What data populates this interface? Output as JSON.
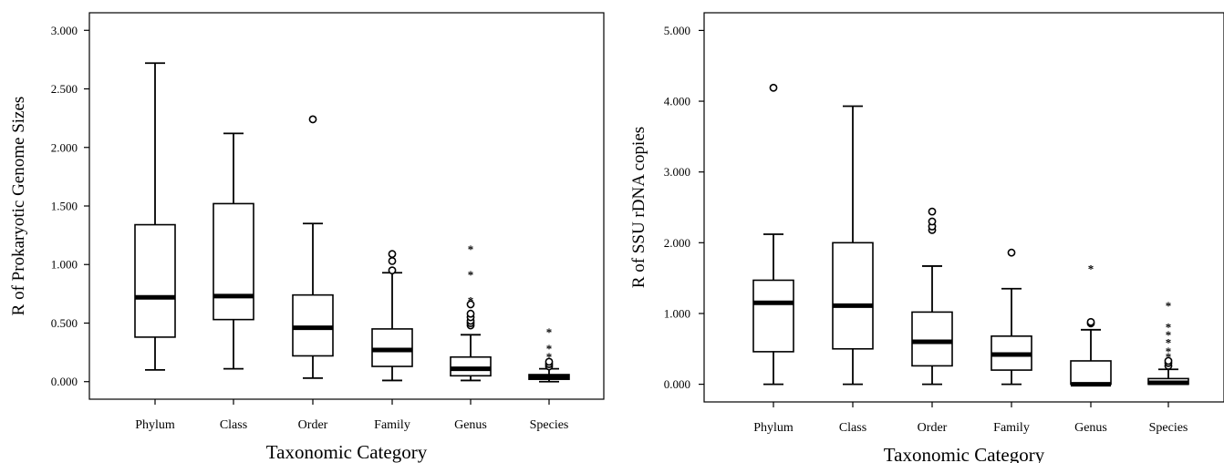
{
  "chart_data": [
    {
      "type": "boxplot",
      "xlabel": "Taxonomic Category",
      "ylabel": "R of Prokaryotic Genome Sizes",
      "ylim": [
        -0.15,
        3.15
      ],
      "yticks": [
        "0.000",
        "0.500",
        "1.000",
        "1.500",
        "2.000",
        "2.500",
        "3.000"
      ],
      "ytick_values": [
        0,
        0.5,
        1,
        1.5,
        2,
        2.5,
        3
      ],
      "categories": [
        "Phylum",
        "Class",
        "Order",
        "Family",
        "Genus",
        "Species"
      ],
      "boxes": [
        {
          "min": 0.1,
          "q1": 0.38,
          "median": 0.72,
          "q3": 1.34,
          "max": 2.72,
          "outliers": [],
          "extremes": []
        },
        {
          "min": 0.11,
          "q1": 0.53,
          "median": 0.73,
          "q3": 1.52,
          "max": 2.12,
          "outliers": [],
          "extremes": []
        },
        {
          "min": 0.03,
          "q1": 0.22,
          "median": 0.46,
          "q3": 0.74,
          "max": 1.35,
          "outliers": [
            2.24
          ],
          "extremes": []
        },
        {
          "min": 0.01,
          "q1": 0.13,
          "median": 0.27,
          "q3": 0.45,
          "max": 0.93,
          "outliers": [
            0.95,
            1.03,
            1.09
          ],
          "extremes": []
        },
        {
          "min": 0.01,
          "q1": 0.05,
          "median": 0.11,
          "q3": 0.21,
          "max": 0.4,
          "outliers": [
            0.48,
            0.5,
            0.52,
            0.55,
            0.58,
            0.66
          ],
          "extremes": [
            0.71,
            0.93,
            1.15
          ]
        },
        {
          "min": 0.0,
          "q1": 0.02,
          "median": 0.04,
          "q3": 0.06,
          "max": 0.11,
          "outliers": [
            0.13,
            0.15,
            0.17
          ],
          "extremes": [
            0.23,
            0.3,
            0.44
          ]
        }
      ]
    },
    {
      "type": "boxplot",
      "xlabel": "Taxonomic Category",
      "ylabel": "R of SSU rDNA copies",
      "ylim": [
        -0.25,
        5.25
      ],
      "yticks": [
        "0.000",
        "1.000",
        "2.000",
        "3.000",
        "4.000",
        "5.000"
      ],
      "ytick_values": [
        0,
        1,
        2,
        3,
        4,
        5
      ],
      "categories": [
        "Phylum",
        "Class",
        "Order",
        "Family",
        "Genus",
        "Species"
      ],
      "boxes": [
        {
          "min": 0.0,
          "q1": 0.46,
          "median": 1.15,
          "q3": 1.47,
          "max": 2.12,
          "outliers": [
            4.19
          ],
          "extremes": []
        },
        {
          "min": 0.0,
          "q1": 0.5,
          "median": 1.11,
          "q3": 2.0,
          "max": 3.93,
          "outliers": [],
          "extremes": []
        },
        {
          "min": 0.0,
          "q1": 0.26,
          "median": 0.6,
          "q3": 1.02,
          "max": 1.67,
          "outliers": [
            2.18,
            2.23,
            2.3,
            2.44
          ],
          "extremes": []
        },
        {
          "min": 0.0,
          "q1": 0.2,
          "median": 0.42,
          "q3": 0.68,
          "max": 1.35,
          "outliers": [
            1.86
          ],
          "extremes": []
        },
        {
          "min": 0.0,
          "q1": 0.0,
          "median": 0.0,
          "q3": 0.33,
          "max": 0.77,
          "outliers": [
            0.86,
            0.88
          ],
          "extremes": [
            1.66
          ]
        },
        {
          "min": 0.0,
          "q1": 0.0,
          "median": 0.02,
          "q3": 0.08,
          "max": 0.21,
          "outliers": [
            0.26,
            0.3,
            0.33
          ],
          "extremes": [
            0.42,
            0.5,
            0.62,
            0.73,
            0.84,
            1.14
          ]
        }
      ]
    }
  ]
}
